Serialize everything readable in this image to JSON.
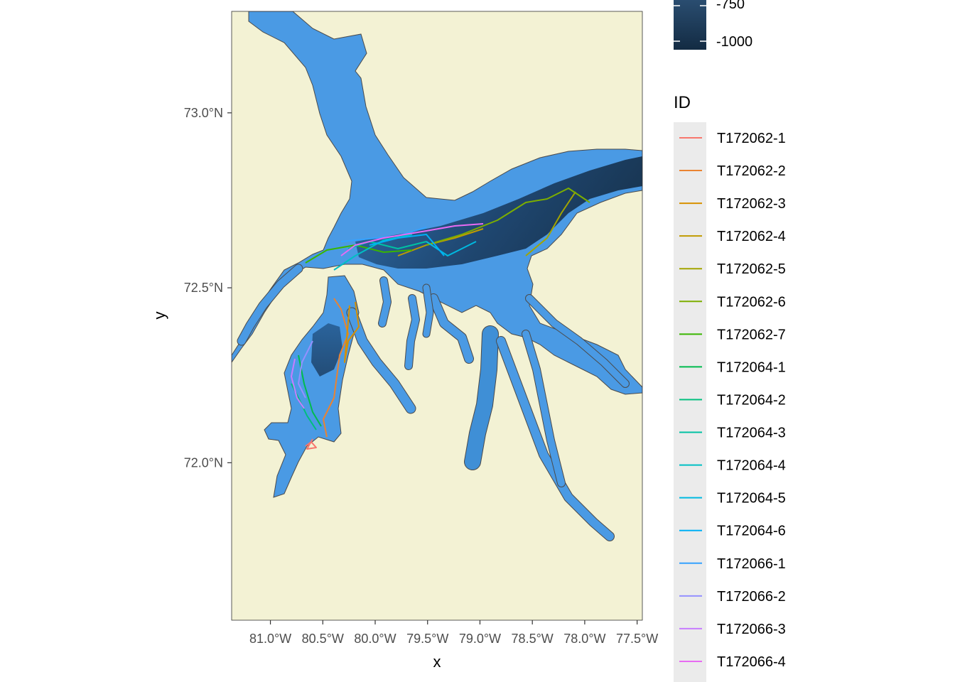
{
  "chart_data": {
    "type": "map",
    "xlabel": "x",
    "ylabel": "y",
    "x_range": [
      -81.37,
      -77.45
    ],
    "y_range": [
      71.55,
      73.29
    ],
    "x_ticks": [
      "81.0°W",
      "80.5°W",
      "80.0°W",
      "79.5°W",
      "79.0°W",
      "78.5°W",
      "78.0°W",
      "77.5°W"
    ],
    "x_tick_values": [
      -81.0,
      -80.5,
      -80.0,
      -79.5,
      -79.0,
      -78.5,
      -78.0,
      -77.5
    ],
    "y_ticks": [
      "73.0°N",
      "72.5°N",
      "72.0°N"
    ],
    "y_tick_values": [
      73.0,
      72.5,
      72.0
    ],
    "land_color": "#f3f2d4",
    "grid": false,
    "colorbar": {
      "visible_labels": [
        "-750",
        "-1000"
      ],
      "visible_values": [
        -750,
        -1000
      ],
      "shallow_color": "#55a7f0",
      "deep_color": "#132b43"
    },
    "legend": {
      "title": "ID",
      "placement": "right",
      "entries": [
        {
          "id": "T172062-1",
          "color": "#F8766D"
        },
        {
          "id": "T172062-2",
          "color": "#EA8331"
        },
        {
          "id": "T172062-3",
          "color": "#D89000"
        },
        {
          "id": "T172062-4",
          "color": "#C09B00"
        },
        {
          "id": "T172062-5",
          "color": "#A3A500"
        },
        {
          "id": "T172062-6",
          "color": "#7CAE00"
        },
        {
          "id": "T172062-7",
          "color": "#39B600"
        },
        {
          "id": "T172064-1",
          "color": "#00BB4E"
        },
        {
          "id": "T172064-2",
          "color": "#00BF7D"
        },
        {
          "id": "T172064-3",
          "color": "#00C1A3"
        },
        {
          "id": "T172064-4",
          "color": "#00BFC4"
        },
        {
          "id": "T172064-5",
          "color": "#00BAE0"
        },
        {
          "id": "T172064-6",
          "color": "#00B0F6"
        },
        {
          "id": "T172066-1",
          "color": "#35A2FF"
        },
        {
          "id": "T172066-2",
          "color": "#9590FF"
        },
        {
          "id": "T172066-3",
          "color": "#C77CFF"
        },
        {
          "id": "T172066-4",
          "color": "#E76BF3"
        }
      ]
    }
  }
}
